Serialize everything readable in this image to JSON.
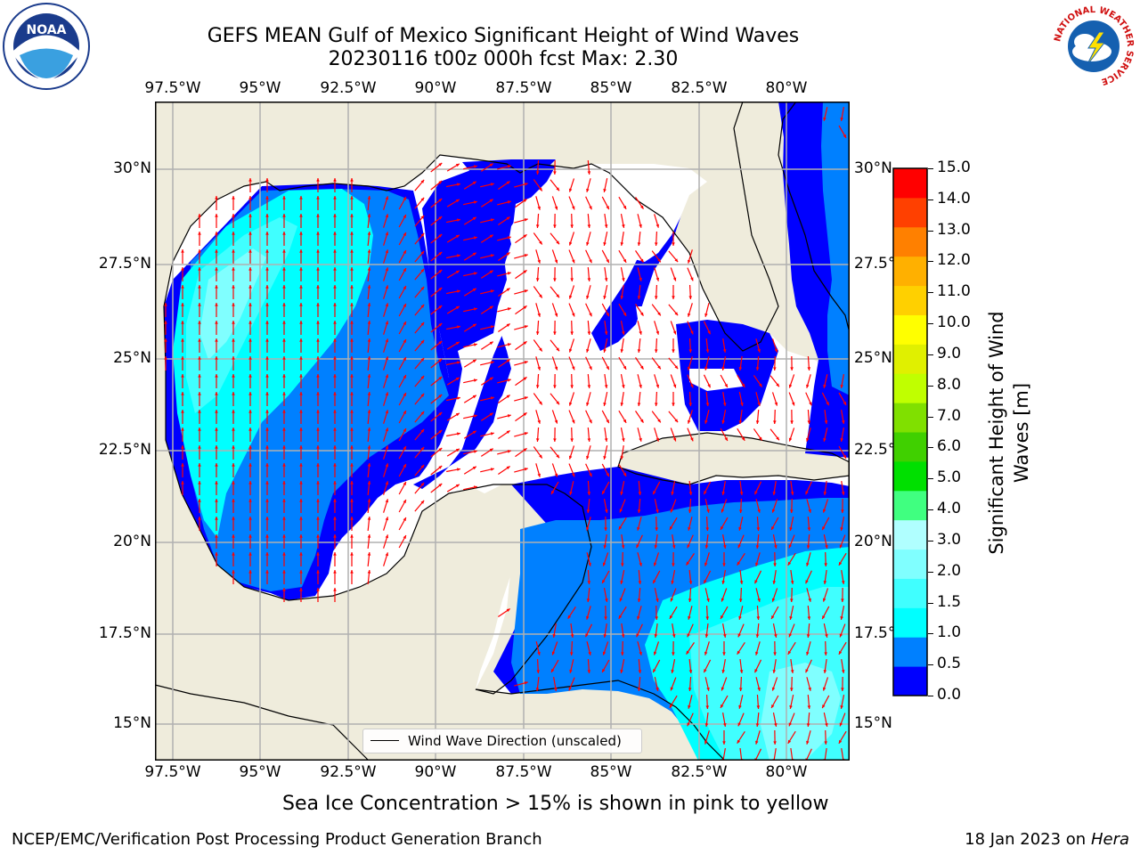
{
  "header": {
    "title": "GEFS MEAN Gulf of Mexico Significant Height of Wind Waves",
    "subtitle": "20230116 t00z 000h fcst   Max: 2.30"
  },
  "logos": {
    "noaa_text": "NOAA",
    "nws_ring_text": "NATIONAL WEATHER SERVICE"
  },
  "map": {
    "lon_labels": [
      "97.5°W",
      "95°W",
      "92.5°W",
      "90°W",
      "87.5°W",
      "85°W",
      "82.5°W",
      "80°W"
    ],
    "lat_labels": [
      "30°N",
      "27.5°N",
      "25°N",
      "22.5°N",
      "20°N",
      "17.5°N",
      "15°N"
    ],
    "land_color": "#efecdc",
    "grid_color": "#b0b0b0",
    "arrow_color": "#ff0000",
    "legend_label": "Wind Wave Direction (unscaled)"
  },
  "colorbar": {
    "title": "Significant Height of Wind Waves [m]",
    "title_line1": "Significant Height of Wind",
    "title_line2": "Waves [m]",
    "tick_labels": [
      "0.0",
      "0.5",
      "1.0",
      "1.5",
      "2.0",
      "3.0",
      "4.0",
      "5.0",
      "6.0",
      "7.0",
      "8.0",
      "9.0",
      "10.0",
      "11.0",
      "12.0",
      "13.0",
      "14.0",
      "15.0"
    ],
    "colors": [
      "#0000ff",
      "#0080ff",
      "#00ffff",
      "#40ffff",
      "#80ffff",
      "#b0ffff",
      "#40ff80",
      "#00e000",
      "#40d000",
      "#80e000",
      "#c0ff00",
      "#e0f000",
      "#ffff00",
      "#ffd000",
      "#ffb000",
      "#ff8000",
      "#ff4000",
      "#ff0000"
    ]
  },
  "footer": {
    "note": "Sea Ice Concentration > 15% is shown in pink to yellow",
    "left": "NCEP/EMC/Verification Post Processing Product Generation Branch",
    "right_date": "18 Jan 2023 on ",
    "right_host": "Hera"
  }
}
